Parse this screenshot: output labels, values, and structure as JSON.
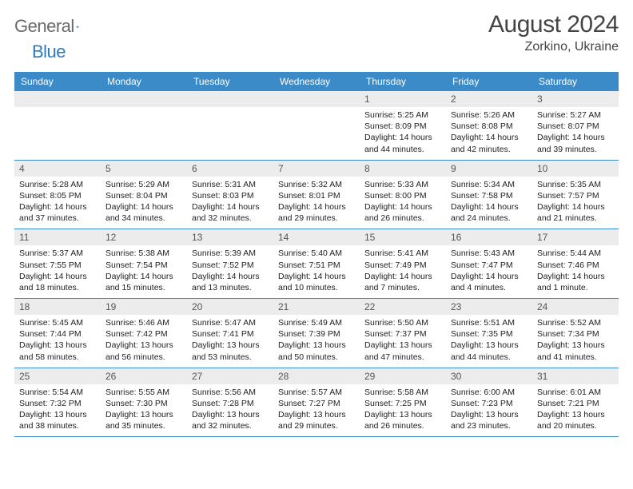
{
  "logo": {
    "textA": "General",
    "textB": "Blue"
  },
  "header": {
    "month": "August 2024",
    "location": "Zorkino, Ukraine"
  },
  "colors": {
    "header_bar": "#3b8bc9",
    "daynum_bg": "#ececec",
    "week_border": "#3b8bc9",
    "logo_gray": "#6a6a6a",
    "logo_blue": "#2a7ac0"
  },
  "dayNames": [
    "Sunday",
    "Monday",
    "Tuesday",
    "Wednesday",
    "Thursday",
    "Friday",
    "Saturday"
  ],
  "weeks": [
    [
      {
        "blank": true
      },
      {
        "blank": true
      },
      {
        "blank": true
      },
      {
        "blank": true
      },
      {
        "n": "1",
        "sr": "5:25 AM",
        "ss": "8:09 PM",
        "dl": "14 hours and 44 minutes."
      },
      {
        "n": "2",
        "sr": "5:26 AM",
        "ss": "8:08 PM",
        "dl": "14 hours and 42 minutes."
      },
      {
        "n": "3",
        "sr": "5:27 AM",
        "ss": "8:07 PM",
        "dl": "14 hours and 39 minutes."
      }
    ],
    [
      {
        "n": "4",
        "sr": "5:28 AM",
        "ss": "8:05 PM",
        "dl": "14 hours and 37 minutes."
      },
      {
        "n": "5",
        "sr": "5:29 AM",
        "ss": "8:04 PM",
        "dl": "14 hours and 34 minutes."
      },
      {
        "n": "6",
        "sr": "5:31 AM",
        "ss": "8:03 PM",
        "dl": "14 hours and 32 minutes."
      },
      {
        "n": "7",
        "sr": "5:32 AM",
        "ss": "8:01 PM",
        "dl": "14 hours and 29 minutes."
      },
      {
        "n": "8",
        "sr": "5:33 AM",
        "ss": "8:00 PM",
        "dl": "14 hours and 26 minutes."
      },
      {
        "n": "9",
        "sr": "5:34 AM",
        "ss": "7:58 PM",
        "dl": "14 hours and 24 minutes."
      },
      {
        "n": "10",
        "sr": "5:35 AM",
        "ss": "7:57 PM",
        "dl": "14 hours and 21 minutes."
      }
    ],
    [
      {
        "n": "11",
        "sr": "5:37 AM",
        "ss": "7:55 PM",
        "dl": "14 hours and 18 minutes."
      },
      {
        "n": "12",
        "sr": "5:38 AM",
        "ss": "7:54 PM",
        "dl": "14 hours and 15 minutes."
      },
      {
        "n": "13",
        "sr": "5:39 AM",
        "ss": "7:52 PM",
        "dl": "14 hours and 13 minutes."
      },
      {
        "n": "14",
        "sr": "5:40 AM",
        "ss": "7:51 PM",
        "dl": "14 hours and 10 minutes."
      },
      {
        "n": "15",
        "sr": "5:41 AM",
        "ss": "7:49 PM",
        "dl": "14 hours and 7 minutes."
      },
      {
        "n": "16",
        "sr": "5:43 AM",
        "ss": "7:47 PM",
        "dl": "14 hours and 4 minutes."
      },
      {
        "n": "17",
        "sr": "5:44 AM",
        "ss": "7:46 PM",
        "dl": "14 hours and 1 minute."
      }
    ],
    [
      {
        "n": "18",
        "sr": "5:45 AM",
        "ss": "7:44 PM",
        "dl": "13 hours and 58 minutes."
      },
      {
        "n": "19",
        "sr": "5:46 AM",
        "ss": "7:42 PM",
        "dl": "13 hours and 56 minutes."
      },
      {
        "n": "20",
        "sr": "5:47 AM",
        "ss": "7:41 PM",
        "dl": "13 hours and 53 minutes."
      },
      {
        "n": "21",
        "sr": "5:49 AM",
        "ss": "7:39 PM",
        "dl": "13 hours and 50 minutes."
      },
      {
        "n": "22",
        "sr": "5:50 AM",
        "ss": "7:37 PM",
        "dl": "13 hours and 47 minutes."
      },
      {
        "n": "23",
        "sr": "5:51 AM",
        "ss": "7:35 PM",
        "dl": "13 hours and 44 minutes."
      },
      {
        "n": "24",
        "sr": "5:52 AM",
        "ss": "7:34 PM",
        "dl": "13 hours and 41 minutes."
      }
    ],
    [
      {
        "n": "25",
        "sr": "5:54 AM",
        "ss": "7:32 PM",
        "dl": "13 hours and 38 minutes."
      },
      {
        "n": "26",
        "sr": "5:55 AM",
        "ss": "7:30 PM",
        "dl": "13 hours and 35 minutes."
      },
      {
        "n": "27",
        "sr": "5:56 AM",
        "ss": "7:28 PM",
        "dl": "13 hours and 32 minutes."
      },
      {
        "n": "28",
        "sr": "5:57 AM",
        "ss": "7:27 PM",
        "dl": "13 hours and 29 minutes."
      },
      {
        "n": "29",
        "sr": "5:58 AM",
        "ss": "7:25 PM",
        "dl": "13 hours and 26 minutes."
      },
      {
        "n": "30",
        "sr": "6:00 AM",
        "ss": "7:23 PM",
        "dl": "13 hours and 23 minutes."
      },
      {
        "n": "31",
        "sr": "6:01 AM",
        "ss": "7:21 PM",
        "dl": "13 hours and 20 minutes."
      }
    ]
  ],
  "labels": {
    "sunrise": "Sunrise: ",
    "sunset": "Sunset: ",
    "daylight": "Daylight: "
  }
}
